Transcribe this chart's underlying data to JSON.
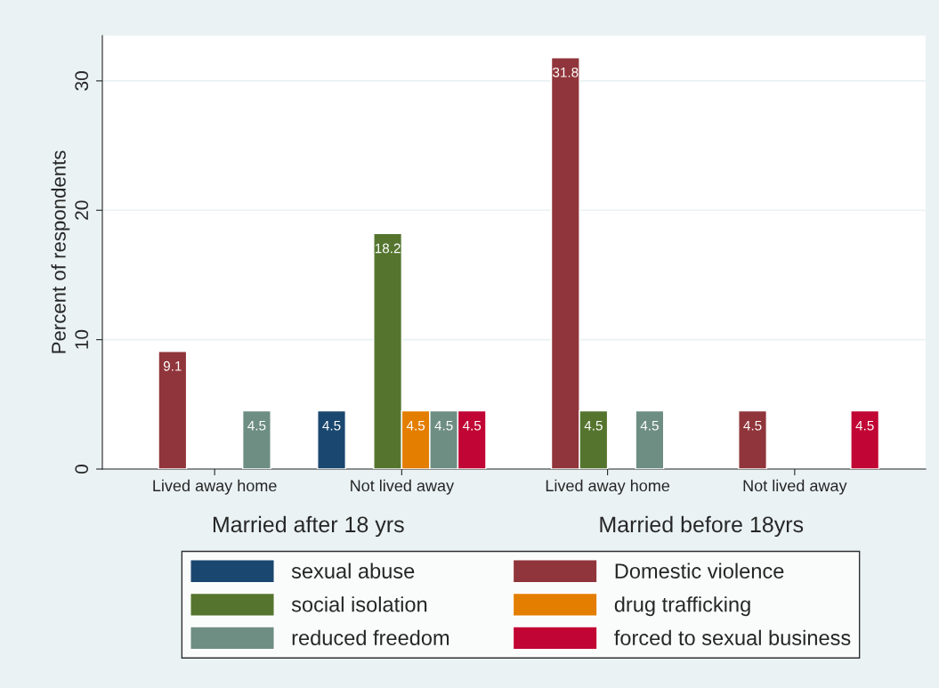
{
  "chart_data": {
    "type": "bar",
    "categories": [
      "Lived away home",
      "Not lived away",
      "Lived away home",
      "Not lived away"
    ],
    "annotations": [
      "Married after 18 yrs",
      "Married before 18yrs"
    ],
    "ylabel": "Percent of respondents",
    "ylim": [
      0,
      33.5
    ],
    "yticks": [
      0,
      10,
      20,
      30
    ],
    "grid": "y",
    "legend": "bottom",
    "data_labels": true,
    "series": [
      {
        "name": "sexual abuse",
        "color": "#1a476f",
        "values": [
          null,
          4.5,
          null,
          null
        ]
      },
      {
        "name": "Domestic violence",
        "color": "#90353b",
        "values": [
          9.1,
          null,
          31.8,
          4.5
        ]
      },
      {
        "name": "social isolation",
        "color": "#55752f",
        "values": [
          null,
          18.2,
          4.5,
          null
        ]
      },
      {
        "name": "drug trafficking",
        "color": "#e37e00",
        "values": [
          null,
          4.5,
          null,
          null
        ]
      },
      {
        "name": "reduced freedom",
        "color": "#6e8e84",
        "values": [
          4.5,
          4.5,
          4.5,
          null
        ]
      },
      {
        "name": "forced to sexual business",
        "color": "#c10534",
        "values": [
          null,
          4.5,
          null,
          4.5
        ]
      }
    ]
  }
}
